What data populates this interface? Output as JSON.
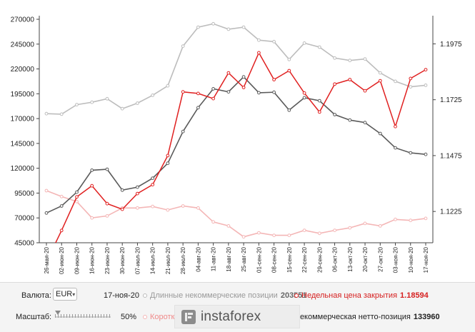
{
  "chart_data": {
    "type": "line",
    "categories": [
      "26-мая-20",
      "02-июн-20",
      "09-июн-20",
      "16-июн-20",
      "23-июн-20",
      "30-июн-20",
      "07-июл-20",
      "14-июл-20",
      "21-июл-20",
      "28-июл-20",
      "04-авг-20",
      "11-авг-20",
      "18-авг-20",
      "25-авг-20",
      "01-сен-20",
      "08-сен-20",
      "15-сен-20",
      "22-сен-20",
      "29-сен-20",
      "06-окт-20",
      "13-окт-20",
      "20-окт-20",
      "27-окт-20",
      "03-ноя-20",
      "10-ноя-20",
      "17-ноя-20"
    ],
    "left_axis": {
      "ylim": [
        45000,
        270000
      ],
      "ticks": [
        "270000",
        "245000",
        "220000",
        "195000",
        "170000",
        "145000",
        "120000",
        "95000",
        "70000",
        "45000"
      ]
    },
    "right_axis": {
      "ylim": [
        1.1085,
        1.2085
      ],
      "ticks": [
        "1.1975",
        "1.1725",
        "1.1475",
        "1.1225"
      ]
    },
    "series": [
      {
        "name": "Длинные некоммерческие позиции",
        "axis": "left",
        "color": "#bdbdbd",
        "values": [
          175000,
          174500,
          184000,
          186500,
          190000,
          180000,
          185500,
          193500,
          203000,
          243000,
          262000,
          265500,
          260000,
          262000,
          249000,
          247500,
          229500,
          246000,
          242000,
          231000,
          228500,
          230000,
          216000,
          207500,
          202000,
          203551
        ]
      },
      {
        "name": "Короткие некоммерческие позиции",
        "axis": "left",
        "color": "#f4b6b6",
        "values": [
          97500,
          91500,
          86500,
          70000,
          72000,
          80000,
          80000,
          81500,
          78000,
          82000,
          80000,
          66000,
          62000,
          51000,
          55000,
          52500,
          52500,
          57500,
          54500,
          57500,
          60000,
          64500,
          62000,
          68500,
          67500,
          69500
        ]
      },
      {
        "name": "Некоммерческая нетто-позиция",
        "axis": "left",
        "color": "#5a5a5a",
        "values": [
          75000,
          82000,
          96000,
          118000,
          119000,
          98000,
          101000,
          110000,
          125000,
          157000,
          181000,
          200000,
          197000,
          212000,
          196000,
          196500,
          178500,
          191000,
          188000,
          174000,
          168500,
          166000,
          155000,
          140500,
          135500,
          133960
        ]
      },
      {
        "name": "Недельная цена закрытия",
        "axis": "right",
        "color": "#e02020",
        "values": [
          1.1,
          1.114,
          1.129,
          1.134,
          1.126,
          1.1235,
          1.1305,
          1.1345,
          1.1475,
          1.176,
          1.1753,
          1.173,
          1.1845,
          1.178,
          1.1935,
          1.1815,
          1.1855,
          1.1755,
          1.167,
          1.1795,
          1.1815,
          1.1765,
          1.181,
          1.1605,
          1.182,
          1.18594
        ]
      }
    ],
    "grid": false,
    "legend": "bottom"
  },
  "controls": {
    "currency_label": "Валюта:",
    "currency_value": "EUR",
    "date": "17-ноя-20",
    "scale_label": "Масштаб:",
    "scale_value": "50%"
  },
  "legend": {
    "long_label": "Длинные некоммерческие позиции",
    "long_value": "203551",
    "close_label": "Недельная цена закрытия",
    "close_value": "1.18594",
    "short_label": "Коротки",
    "net_label": "Некоммерческая нетто-позиция",
    "net_value": "133960"
  },
  "watermark": {
    "text": "instaforex"
  }
}
